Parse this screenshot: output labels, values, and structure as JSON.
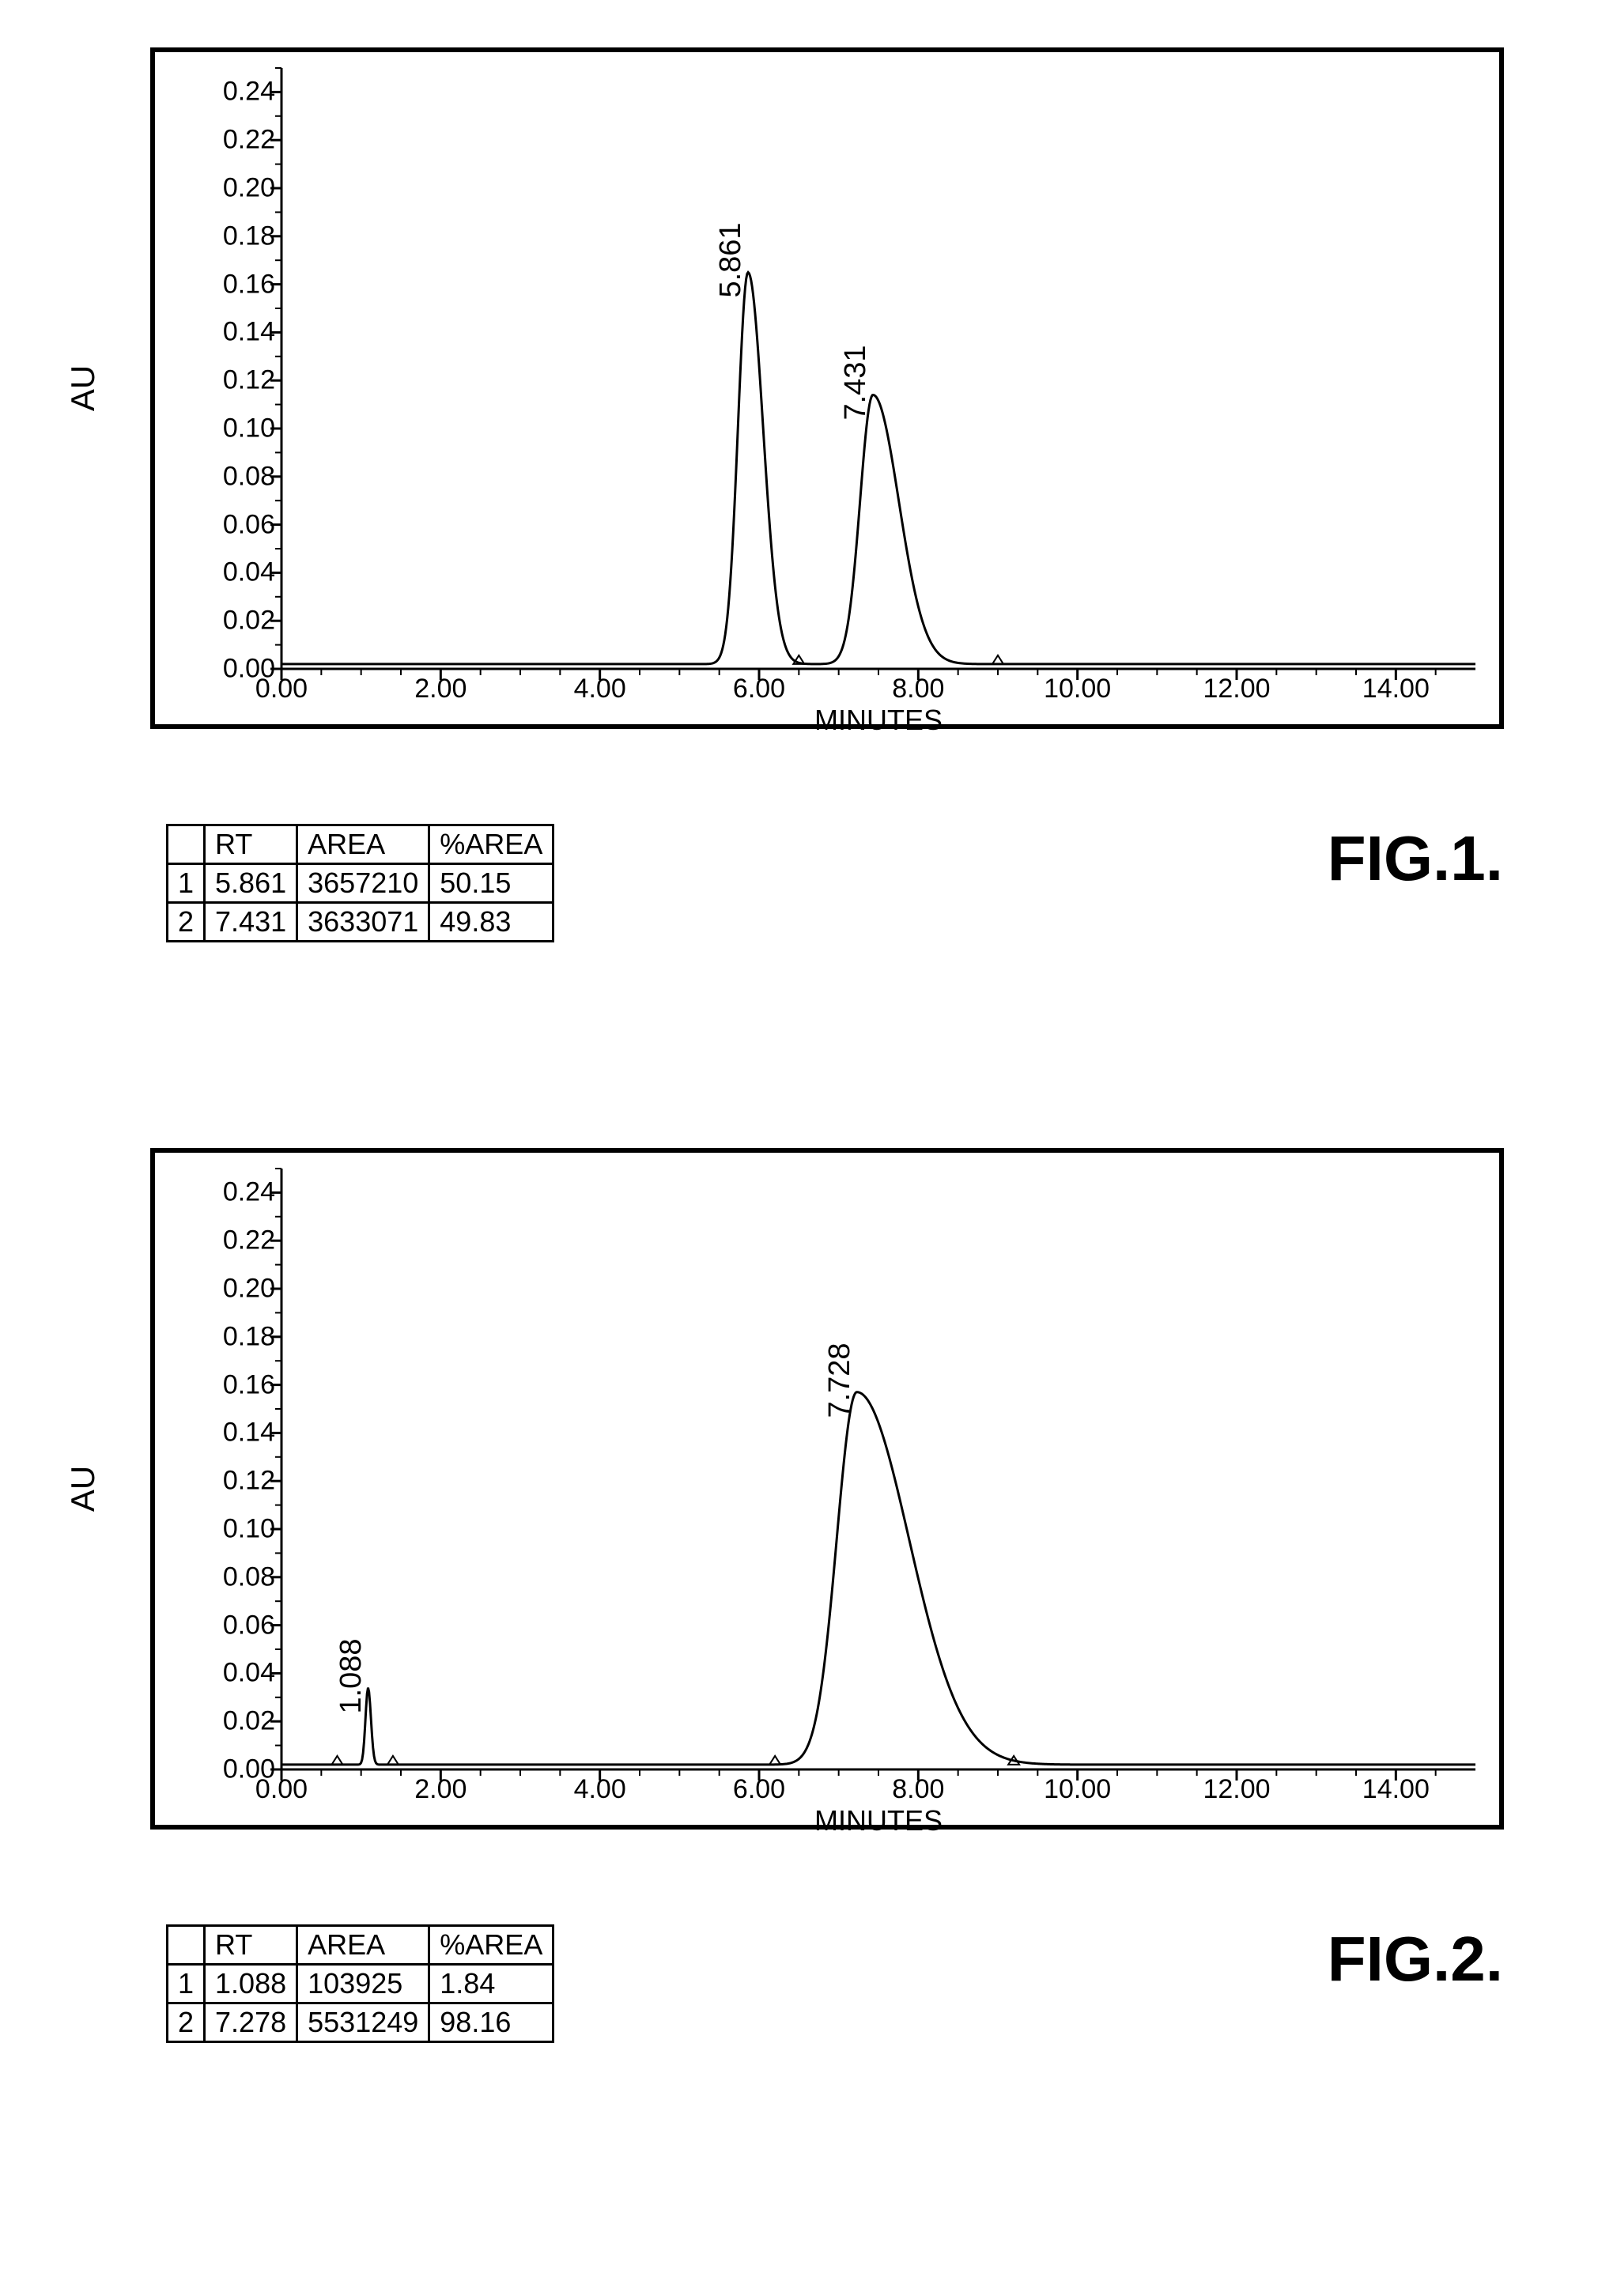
{
  "figures": [
    {
      "caption": "FIG.1.",
      "ylabel": "AU",
      "xlabel": "MINUTES",
      "xlim": [
        0,
        15
      ],
      "ylim": [
        0,
        0.25
      ],
      "xticks": [
        "0.00",
        "2.00",
        "4.00",
        "6.00",
        "8.00",
        "10.00",
        "12.00",
        "14.00"
      ],
      "xtick_vals": [
        0,
        2,
        4,
        6,
        8,
        10,
        12,
        14
      ],
      "yticks": [
        "0.00",
        "0.02",
        "0.04",
        "0.06",
        "0.08",
        "0.10",
        "0.12",
        "0.14",
        "0.16",
        "0.18",
        "0.20",
        "0.22",
        "0.24"
      ],
      "ytick_vals": [
        0,
        0.02,
        0.04,
        0.06,
        0.08,
        0.1,
        0.12,
        0.14,
        0.16,
        0.18,
        0.2,
        0.22,
        0.24
      ],
      "axis_fontsize": 34,
      "label_fontsize": 42,
      "line_color": "#000000",
      "line_width": 3,
      "background_color": "#ffffff",
      "border_color": "#000000",
      "table": {
        "columns": [
          "",
          "RT",
          "AREA",
          "%AREA"
        ],
        "rows": [
          [
            "1",
            "5.861",
            "3657210",
            "50.15"
          ],
          [
            "2",
            "7.431",
            "3633071",
            "49.83"
          ]
        ]
      },
      "peaks": [
        {
          "rt": 5.861,
          "height": 0.163,
          "width": 0.7,
          "tail": 1.5,
          "label": "5.861"
        },
        {
          "rt": 7.431,
          "height": 0.112,
          "width": 0.9,
          "tail": 2.0,
          "label": "7.431"
        }
      ],
      "baseline": 0.002,
      "markers": [
        {
          "x": 6.5,
          "y": 0.002
        },
        {
          "x": 9.0,
          "y": 0.002
        }
      ]
    },
    {
      "caption": "FIG.2.",
      "ylabel": "AU",
      "xlabel": "MINUTES",
      "xlim": [
        0,
        15
      ],
      "ylim": [
        0,
        0.25
      ],
      "xticks": [
        "0.00",
        "2.00",
        "4.00",
        "6.00",
        "8.00",
        "10.00",
        "12.00",
        "14.00"
      ],
      "xtick_vals": [
        0,
        2,
        4,
        6,
        8,
        10,
        12,
        14
      ],
      "yticks": [
        "0.00",
        "0.02",
        "0.04",
        "0.06",
        "0.08",
        "0.10",
        "0.12",
        "0.14",
        "0.16",
        "0.18",
        "0.20",
        "0.22",
        "0.24"
      ],
      "ytick_vals": [
        0,
        0.02,
        0.04,
        0.06,
        0.08,
        0.1,
        0.12,
        0.14,
        0.16,
        0.18,
        0.2,
        0.22,
        0.24
      ],
      "axis_fontsize": 34,
      "label_fontsize": 42,
      "line_color": "#000000",
      "line_width": 3,
      "background_color": "#ffffff",
      "border_color": "#000000",
      "table": {
        "columns": [
          "",
          "RT",
          "AREA",
          "%AREA"
        ],
        "rows": [
          [
            "1",
            "1.088",
            "103925",
            "1.84"
          ],
          [
            "2",
            "7.278",
            "5531249",
            "98.16"
          ]
        ]
      },
      "peaks": [
        {
          "rt": 1.088,
          "height": 0.032,
          "width": 0.18,
          "tail": 1.1,
          "label": "1.088"
        },
        {
          "rt": 7.728,
          "height": 0.155,
          "width": 1.4,
          "tail": 2.6,
          "label": "7.728",
          "center_offset": -0.5
        }
      ],
      "baseline": 0.002,
      "markers": [
        {
          "x": 0.7,
          "y": 0.002
        },
        {
          "x": 1.4,
          "y": 0.002
        },
        {
          "x": 6.2,
          "y": 0.002
        },
        {
          "x": 9.2,
          "y": 0.002
        }
      ]
    }
  ]
}
